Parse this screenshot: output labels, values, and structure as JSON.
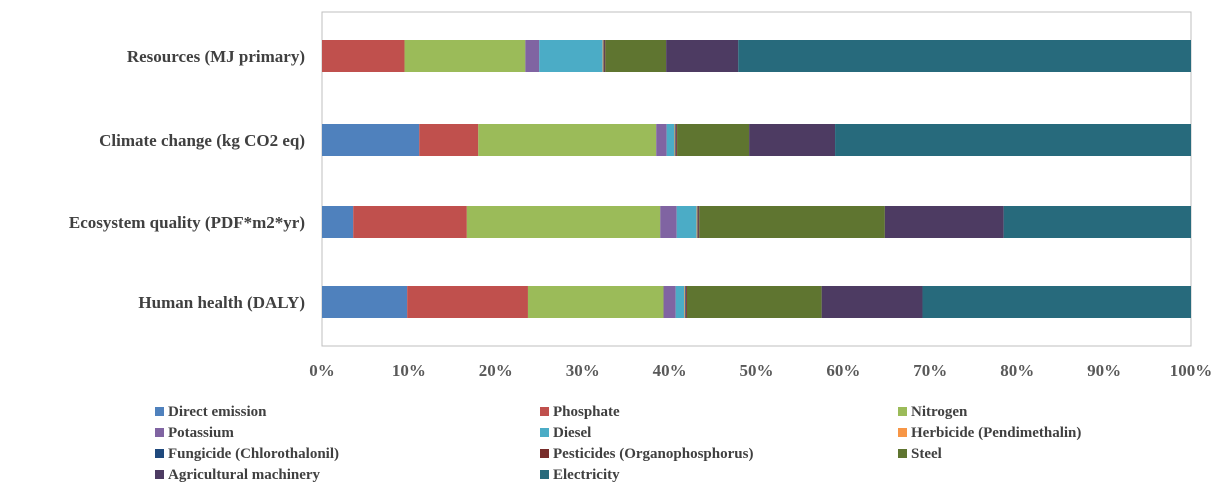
{
  "chart_data": {
    "type": "bar",
    "orientation": "horizontal",
    "stacked": "percent",
    "title": "",
    "xlabel": "",
    "ylabel": "",
    "xlim": [
      0,
      100
    ],
    "x_ticks": [
      "0%",
      "10%",
      "20%",
      "30%",
      "40%",
      "50%",
      "60%",
      "70%",
      "80%",
      "90%",
      "100%"
    ],
    "categories": [
      "Resources (MJ primary)",
      "Climate change (kg CO2 eq)",
      "Ecosystem quality (PDF*m2*yr)",
      "Human health (DALY)"
    ],
    "series": [
      {
        "name": "Direct emission",
        "color": "#4F81BD",
        "values": [
          0,
          11.2,
          3.6,
          9.8
        ]
      },
      {
        "name": "Phosphate",
        "color": "#C0504D",
        "values": [
          9.5,
          6.8,
          13.1,
          13.9
        ]
      },
      {
        "name": "Nitrogen",
        "color": "#9BBB59",
        "values": [
          13.9,
          20.5,
          22.3,
          15.6
        ]
      },
      {
        "name": "Potassium",
        "color": "#8064A2",
        "values": [
          1.6,
          1.2,
          1.9,
          1.4
        ]
      },
      {
        "name": "Diesel",
        "color": "#4BACC6",
        "values": [
          7.3,
          0.9,
          2.3,
          1.0
        ]
      },
      {
        "name": "Herbicide (Pendimethalin)",
        "color": "#F79646",
        "values": [
          0.1,
          0.1,
          0.1,
          0.1
        ]
      },
      {
        "name": "Fungicide (Chlorothalonil)",
        "color": "#1F497D",
        "values": [
          0.1,
          0.1,
          0.1,
          0.1
        ]
      },
      {
        "name": "Pesticides (Organophosphorus)",
        "color": "#772C2A",
        "values": [
          0.1,
          0.1,
          0.1,
          0.1
        ]
      },
      {
        "name": "Steel",
        "color": "#5F7530",
        "values": [
          7.0,
          8.3,
          21.4,
          15.5
        ]
      },
      {
        "name": "Agricultural machinery",
        "color": "#4D3B62",
        "values": [
          8.3,
          9.9,
          13.7,
          11.6
        ]
      },
      {
        "name": "Electricity",
        "color": "#276A7C",
        "values": [
          52.1,
          41.0,
          21.6,
          30.9
        ]
      }
    ],
    "legend": {
      "position": "bottom",
      "columns": 3
    },
    "grid": false
  }
}
